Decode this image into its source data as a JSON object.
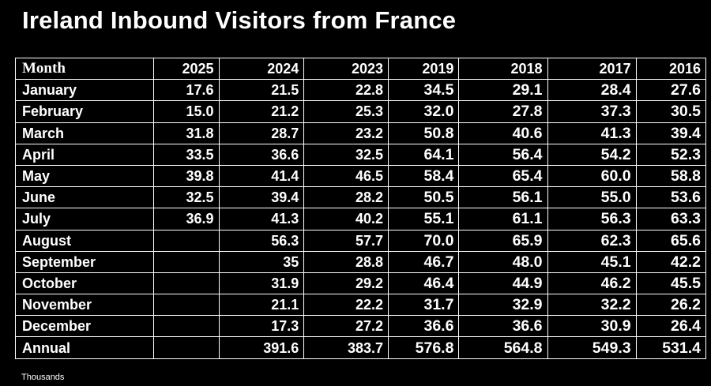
{
  "title": "Ireland Inbound Visitors from France",
  "footnote": "Thousands",
  "chart_data": {
    "type": "table",
    "title": "Ireland Inbound Visitors from France",
    "unit_note": "Thousands",
    "row_header_label": "Month",
    "columns": [
      "2025",
      "2024",
      "2023",
      "2019",
      "2018",
      "2017",
      "2016"
    ],
    "rows": [
      {
        "label": "January",
        "values": [
          "17.6",
          "21.5",
          "22.8",
          "34.5",
          "29.1",
          "28.4",
          "27.6"
        ]
      },
      {
        "label": "February",
        "values": [
          "15.0",
          "21.2",
          "25.3",
          "32.0",
          "27.8",
          "37.3",
          "30.5"
        ]
      },
      {
        "label": "March",
        "values": [
          "31.8",
          "28.7",
          "23.2",
          "50.8",
          "40.6",
          "41.3",
          "39.4"
        ]
      },
      {
        "label": "April",
        "values": [
          "33.5",
          "36.6",
          "32.5",
          "64.1",
          "56.4",
          "54.2",
          "52.3"
        ]
      },
      {
        "label": "May",
        "values": [
          "39.8",
          "41.4",
          "46.5",
          "58.4",
          "65.4",
          "60.0",
          "58.8"
        ]
      },
      {
        "label": "June",
        "values": [
          "32.5",
          "39.4",
          "28.2",
          "50.5",
          "56.1",
          "55.0",
          "53.6"
        ]
      },
      {
        "label": "July",
        "values": [
          "36.9",
          "41.3",
          "40.2",
          "55.1",
          "61.1",
          "56.3",
          "63.3"
        ]
      },
      {
        "label": "August",
        "values": [
          "",
          "56.3",
          "57.7",
          "70.0",
          "65.9",
          "62.3",
          "65.6"
        ]
      },
      {
        "label": "September",
        "values": [
          "",
          "35",
          "28.8",
          "46.7",
          "48.0",
          "45.1",
          "42.2"
        ]
      },
      {
        "label": "October",
        "values": [
          "",
          "31.9",
          "29.2",
          "46.4",
          "44.9",
          "46.2",
          "45.5"
        ]
      },
      {
        "label": "November",
        "values": [
          "",
          "21.1",
          "22.2",
          "31.7",
          "32.9",
          "32.2",
          "26.2"
        ]
      },
      {
        "label": "December",
        "values": [
          "",
          "17.3",
          "27.2",
          "36.6",
          "36.6",
          "30.9",
          "26.4"
        ]
      },
      {
        "label": "Annual",
        "values": [
          "",
          "391.6",
          "383.7",
          "576.8",
          "564.8",
          "549.3",
          "531.4"
        ]
      }
    ]
  },
  "colors": {
    "background": "#000000",
    "text": "#ffffff",
    "grid": "#ffffff"
  }
}
